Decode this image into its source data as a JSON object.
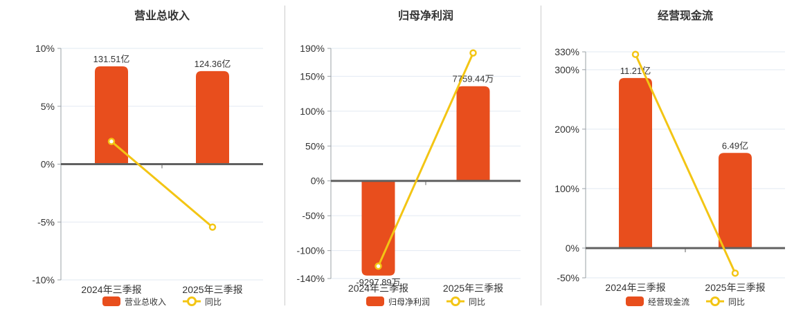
{
  "colors": {
    "bar": "#e84e1d",
    "line": "#f3c514",
    "marker_fill": "#ffffff",
    "zero_axis": "#606060",
    "axis_line": "#9aa0a6",
    "grid": "#e2e9f2",
    "text": "#333333",
    "divider": "#cccccc",
    "background": "#ffffff"
  },
  "chart_data": [
    {
      "type": "bar+line",
      "title": "营业总收入",
      "categories": [
        "2024年三季报",
        "2025年三季报"
      ],
      "bar_series": {
        "name": "营业总收入",
        "value_labels": [
          "131.51亿",
          "124.36亿"
        ],
        "pct_axis_heights": [
          8.45,
          8.04
        ]
      },
      "line_series": {
        "name": "同比",
        "values_pct": [
          1.96,
          -5.44
        ]
      },
      "y_axis": {
        "unit": "%",
        "min": -10,
        "max": 10,
        "ticks": [
          10,
          5,
          0,
          -5,
          -10
        ]
      },
      "grid": true,
      "legend_position": "bottom"
    },
    {
      "type": "bar+line",
      "title": "归母净利润",
      "categories": [
        "2024年三季报",
        "2025年三季报"
      ],
      "bar_series": {
        "name": "归母净利润",
        "value_labels": [
          "-9297.89万",
          "7759.44万"
        ],
        "pct_axis_heights": [
          -135.8,
          135.8
        ]
      },
      "line_series": {
        "name": "同比",
        "values_pct": [
          -122.3,
          183.45
        ]
      },
      "y_axis": {
        "unit": "%",
        "min": -140,
        "max": 190,
        "ticks": [
          190,
          150,
          100,
          50,
          0,
          -50,
          -100,
          -140
        ]
      },
      "grid": true,
      "legend_position": "bottom"
    },
    {
      "type": "bar+line",
      "title": "经营现金流",
      "categories": [
        "2024年三季报",
        "2025年三季报"
      ],
      "bar_series": {
        "name": "经营现金流",
        "value_labels": [
          "11.21亿",
          "6.49亿"
        ],
        "pct_axis_heights": [
          286,
          160
        ]
      },
      "line_series": {
        "name": "同比",
        "values_pct": [
          325.7,
          -42.1
        ]
      },
      "y_axis": {
        "unit": "%",
        "min": -50,
        "max": 330,
        "ticks": [
          330,
          300,
          200,
          100,
          0,
          -50
        ]
      },
      "grid": true,
      "legend_position": "bottom"
    }
  ]
}
